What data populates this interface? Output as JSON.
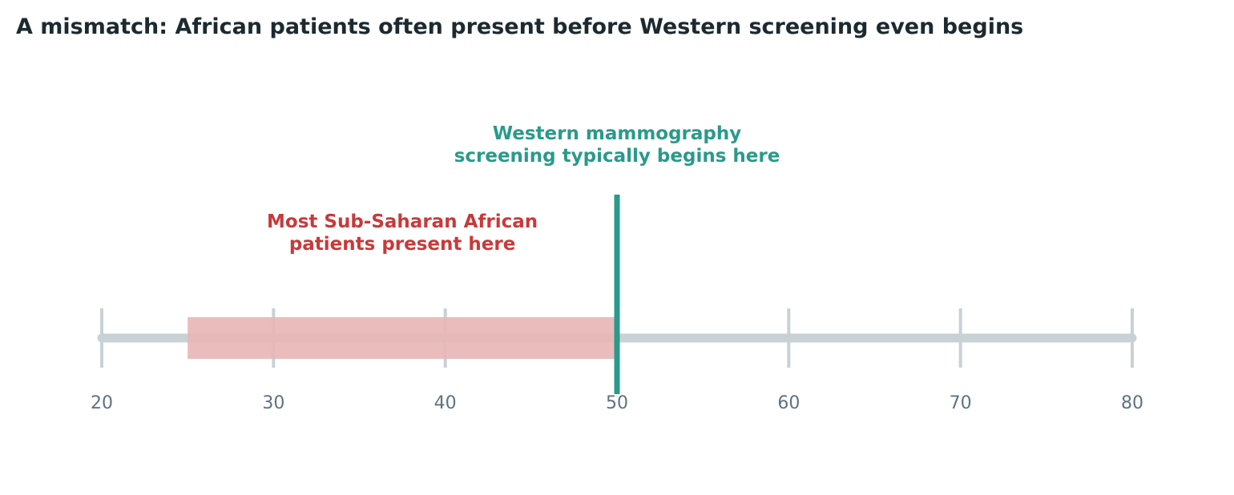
{
  "chart_data": {
    "type": "timeline",
    "title": "A mismatch: African patients often present before Western screening even begins",
    "xlabel": "",
    "ylabel": "",
    "xlim": [
      20,
      80
    ],
    "ticks": [
      {
        "value": 20,
        "label": "20"
      },
      {
        "value": 30,
        "label": "30"
      },
      {
        "value": 40,
        "label": "40"
      },
      {
        "value": 50,
        "label": "50"
      },
      {
        "value": 60,
        "label": "60"
      },
      {
        "value": 70,
        "label": "70"
      },
      {
        "value": 80,
        "label": "80"
      }
    ],
    "presentation_range": {
      "start": 25,
      "end": 50,
      "label_line1": "Most Sub-Saharan African",
      "label_line2": "patients present here",
      "color": "#e8b6b6",
      "label_color": "#c83a3a"
    },
    "screening_start": {
      "value": 50,
      "label_line1": "Western mammography",
      "label_line2": "screening typically begins here",
      "color": "#2a9a8a"
    },
    "grid": false,
    "legend": "none",
    "colors": {
      "title": "#1c2a30",
      "axis_line": "#c8d1d6",
      "tick_label": "#5d7380"
    }
  }
}
